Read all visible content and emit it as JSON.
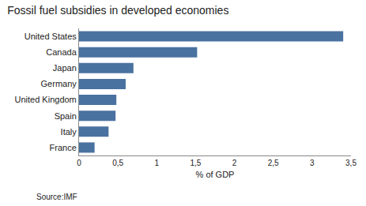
{
  "chart_data": {
    "type": "bar",
    "orientation": "horizontal",
    "title": "Fossil fuel subsidies in developed economies",
    "categories": [
      "France",
      "Italy",
      "Spain",
      "United Kingdom",
      "Germany",
      "Japan",
      "Canada",
      "United States"
    ],
    "values": [
      0.2,
      0.38,
      0.47,
      0.48,
      0.6,
      0.7,
      1.52,
      3.4
    ],
    "color": "#4a72a0",
    "xlabel": "% of GDP",
    "annotations": [
      "Source:IMF"
    ],
    "xlim": [
      0,
      3.5
    ],
    "xticks": [
      0,
      {
        "value": 0.5,
        "label": "0,5"
      },
      1,
      {
        "value": 1.5,
        "label": "1,5"
      },
      2,
      {
        "value": 2.5,
        "label": "2,5"
      },
      3,
      {
        "value": 3.5,
        "label": "3,5"
      }
    ],
    "grid": false
  }
}
